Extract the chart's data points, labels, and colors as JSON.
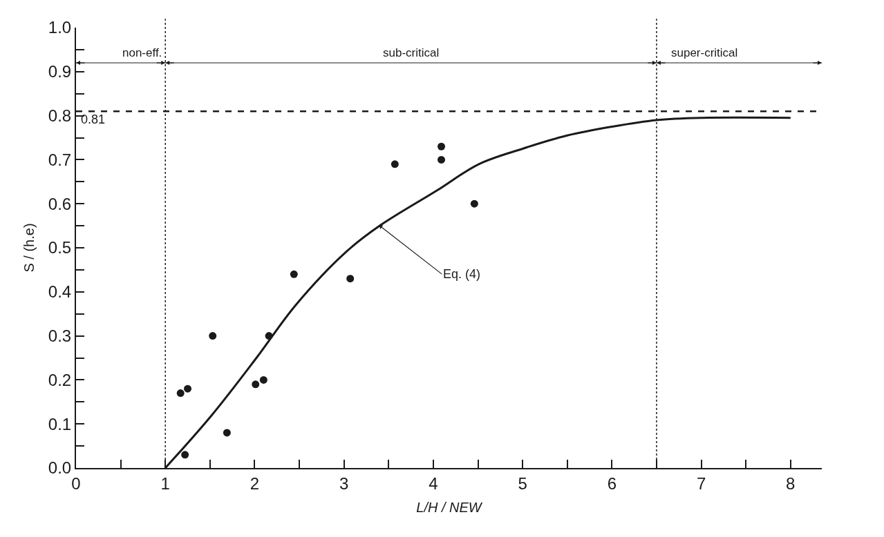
{
  "chart_data": {
    "type": "scatter",
    "xlabel": "L/H / NEW",
    "ylabel": "S / (h.e)",
    "xlim": [
      0,
      8.35
    ],
    "ylim": [
      0,
      1.0
    ],
    "xticks": [
      0,
      {
        "value": 0.5,
        "label": null
      },
      1,
      {
        "value": 1.5,
        "label": null
      },
      2,
      {
        "value": 2.5,
        "label": null
      },
      3,
      {
        "value": 3.5,
        "label": null
      },
      4,
      {
        "value": 4.5,
        "label": null
      },
      5,
      {
        "value": 5.5,
        "label": null
      },
      6,
      {
        "value": 6.5,
        "label": null
      },
      7,
      {
        "value": 7.5,
        "label": null
      },
      8
    ],
    "yticks": [
      {
        "value": 0,
        "label": "0.0"
      },
      {
        "value": 0.05,
        "label": null
      },
      0.1,
      {
        "value": 0.15,
        "label": null
      },
      0.2,
      {
        "value": 0.25,
        "label": null
      },
      0.3,
      {
        "value": 0.35,
        "label": null
      },
      0.4,
      {
        "value": 0.45,
        "label": null
      },
      0.5,
      {
        "value": 0.55,
        "label": null
      },
      0.6,
      {
        "value": 0.65,
        "label": null
      },
      0.7,
      {
        "value": 0.75,
        "label": null
      },
      0.8,
      {
        "value": 0.85,
        "label": null
      },
      0.9,
      {
        "value": 0.95,
        "label": null
      },
      {
        "value": 1.0,
        "label": "1.0"
      }
    ],
    "legend": false,
    "series": [
      {
        "color": "#1a1a1a",
        "marker": "circle",
        "x": [
          1.17,
          1.25,
          1.22,
          1.53,
          1.69,
          2.01,
          2.1,
          2.16,
          2.44,
          3.07,
          3.57,
          4.09,
          4.09,
          4.46
        ],
        "values": [
          0.17,
          0.18,
          0.03,
          0.3,
          0.08,
          0.19,
          0.2,
          0.3,
          0.44,
          0.43,
          0.69,
          0.73,
          0.7,
          0.6
        ]
      },
      {
        "type": "line",
        "color": "#1a1a1a",
        "line_style": "solid",
        "x": [
          1.0,
          1.52,
          2.02,
          2.46,
          3.02,
          3.4,
          4.04,
          4.51,
          5.0,
          5.5,
          6.0,
          6.5,
          7.0,
          8.0
        ],
        "values": [
          0.0,
          0.12,
          0.25,
          0.37,
          0.49,
          0.55,
          0.63,
          0.69,
          0.725,
          0.755,
          0.775,
          0.79,
          0.795,
          0.795
        ]
      }
    ],
    "ref_lines": [
      {
        "axis": "y",
        "value": 0.81,
        "label": "0.81",
        "line_style": "dashed",
        "color": "#1a1a1a"
      },
      {
        "axis": "x",
        "value": 1,
        "label": null,
        "line_style": "dotted",
        "color": "#1a1a1a"
      },
      {
        "axis": "x",
        "value": 6.5,
        "label": null,
        "line_style": "dotted",
        "color": "#1a1a1a"
      }
    ],
    "annotations": [
      "non-eff.",
      "sub-critical",
      "super-critical",
      {
        "text": "Eq. (4)",
        "x": 3.4,
        "y": 0.55
      }
    ]
  }
}
